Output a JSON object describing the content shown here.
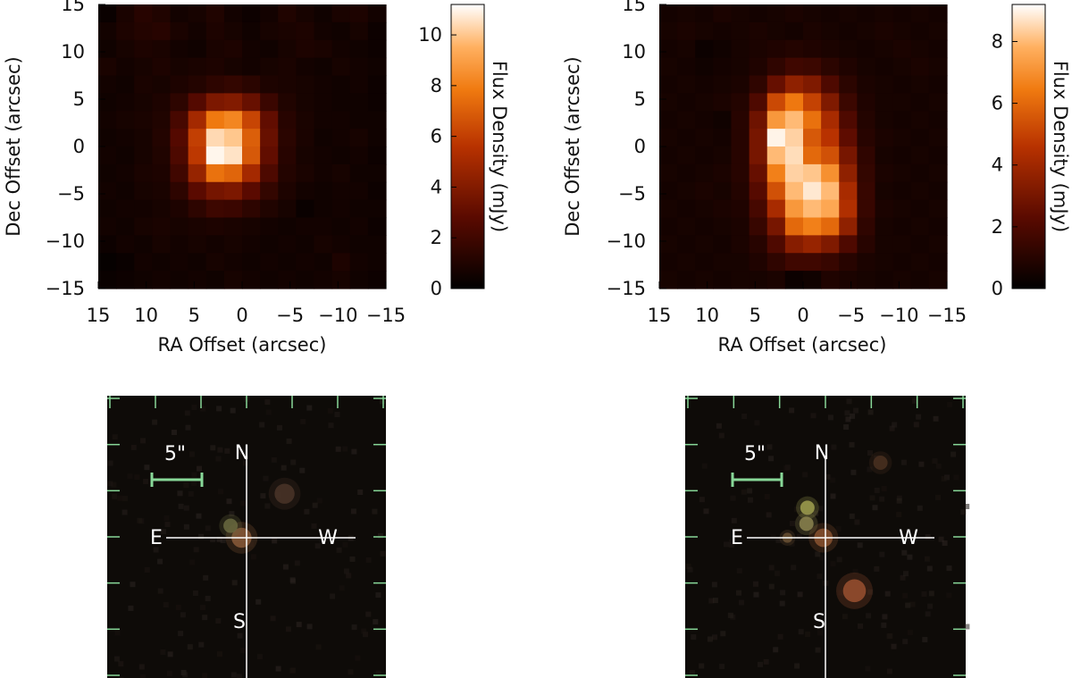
{
  "chart_data": [
    {
      "type": "heatmap",
      "id": "left",
      "x_ticks": [
        "15",
        "10",
        "5",
        "0",
        "−5",
        "−10",
        "−15"
      ],
      "y_ticks": [
        "15",
        "10",
        "5",
        "0",
        "−5",
        "−10",
        "−15"
      ],
      "xlabel": "RA Offset (arcsec)",
      "ylabel": "Dec Offset (arcsec)",
      "xlim": [
        15,
        -15
      ],
      "ylim": [
        -15,
        15
      ],
      "colorbar": {
        "label": "Flux Density (mJy)",
        "ticks": [
          "0",
          "2",
          "4",
          "6",
          "8",
          "10"
        ],
        "range": [
          0,
          11.2
        ]
      },
      "z": [
        [
          0.3,
          0.8,
          1.2,
          1.0,
          0.6,
          0.7,
          1.0,
          0.6,
          0.4,
          0.6,
          1.0,
          0.7,
          0.5,
          0.8,
          0.9,
          0.6
        ],
        [
          0.6,
          0.9,
          1.1,
          1.2,
          0.8,
          0.6,
          0.9,
          0.7,
          0.5,
          0.7,
          0.8,
          0.9,
          0.6,
          0.5,
          0.7,
          0.4
        ],
        [
          0.5,
          0.7,
          0.9,
          0.8,
          0.6,
          0.5,
          0.8,
          0.9,
          0.6,
          0.5,
          0.7,
          0.9,
          0.8,
          0.6,
          0.5,
          0.4
        ],
        [
          0.8,
          0.6,
          0.7,
          0.9,
          0.7,
          0.8,
          0.9,
          0.7,
          0.6,
          0.7,
          0.8,
          0.6,
          0.5,
          0.7,
          0.6,
          0.5
        ],
        [
          0.6,
          0.5,
          0.8,
          0.7,
          0.9,
          1.1,
          1.4,
          1.6,
          1.3,
          0.9,
          0.8,
          0.7,
          0.6,
          0.5,
          0.6,
          0.4
        ],
        [
          0.5,
          0.6,
          0.7,
          0.9,
          1.4,
          2.6,
          3.8,
          4.0,
          3.2,
          1.8,
          1.0,
          0.7,
          0.6,
          0.5,
          0.5,
          0.4
        ],
        [
          0.6,
          0.7,
          0.8,
          1.0,
          2.2,
          5.0,
          7.8,
          8.2,
          6.2,
          3.0,
          1.2,
          0.8,
          0.6,
          0.6,
          0.5,
          0.5
        ],
        [
          0.5,
          0.6,
          0.7,
          1.1,
          2.6,
          6.0,
          10.4,
          10.0,
          7.0,
          3.2,
          1.3,
          0.8,
          0.5,
          0.6,
          0.7,
          0.5
        ],
        [
          0.6,
          0.5,
          0.7,
          1.0,
          2.4,
          5.8,
          11.0,
          10.6,
          6.8,
          3.0,
          1.2,
          0.7,
          0.6,
          0.5,
          0.6,
          0.4
        ],
        [
          0.5,
          0.6,
          0.8,
          0.9,
          2.0,
          4.6,
          7.6,
          7.2,
          5.0,
          2.4,
          1.1,
          0.8,
          0.6,
          0.7,
          0.5,
          0.5
        ],
        [
          0.6,
          0.5,
          0.7,
          0.8,
          1.4,
          2.8,
          3.6,
          3.8,
          2.8,
          1.6,
          0.9,
          0.6,
          0.5,
          0.6,
          0.6,
          0.4
        ],
        [
          0.5,
          0.6,
          0.6,
          0.7,
          0.9,
          1.4,
          1.9,
          1.8,
          1.4,
          1.0,
          0.7,
          0.3,
          0.5,
          0.6,
          0.5,
          0.5
        ],
        [
          0.6,
          0.5,
          0.7,
          0.8,
          0.7,
          0.8,
          0.9,
          0.8,
          0.7,
          0.6,
          0.5,
          0.6,
          0.6,
          0.5,
          0.6,
          0.4
        ],
        [
          0.4,
          0.6,
          0.5,
          0.7,
          0.6,
          0.7,
          0.6,
          0.7,
          0.6,
          0.5,
          0.6,
          0.5,
          0.7,
          0.6,
          0.5,
          0.5
        ],
        [
          0.2,
          0.3,
          0.6,
          0.5,
          0.6,
          0.5,
          0.7,
          0.6,
          0.5,
          0.6,
          0.5,
          0.6,
          0.5,
          0.9,
          0.6,
          0.5
        ],
        [
          0.3,
          0.4,
          0.5,
          0.6,
          0.5,
          0.6,
          0.5,
          0.7,
          0.6,
          0.5,
          0.6,
          0.5,
          0.6,
          0.7,
          0.5,
          0.4
        ]
      ]
    },
    {
      "type": "heatmap",
      "id": "right",
      "x_ticks": [
        "15",
        "10",
        "5",
        "0",
        "−5",
        "−10",
        "−15"
      ],
      "y_ticks": [
        "15",
        "10",
        "5",
        "0",
        "−5",
        "−10",
        "−15"
      ],
      "xlabel": "RA Offset (arcsec)",
      "ylabel": "Dec Offset (arcsec)",
      "xlim": [
        15,
        -15
      ],
      "ylim": [
        -15,
        15
      ],
      "colorbar": {
        "label": "Flux Density (mJy)",
        "ticks": [
          "0",
          "2",
          "4",
          "6",
          "8"
        ],
        "range": [
          0,
          9.2
        ]
      },
      "z": [
        [
          0.5,
          0.6,
          0.5,
          0.7,
          0.6,
          0.5,
          0.6,
          0.7,
          0.6,
          0.5,
          0.6,
          0.5,
          0.6,
          0.5,
          0.6,
          0.5
        ],
        [
          0.6,
          0.7,
          0.6,
          0.5,
          0.6,
          0.7,
          0.6,
          0.5,
          0.7,
          0.6,
          0.5,
          0.6,
          0.7,
          0.6,
          0.5,
          0.6
        ],
        [
          0.5,
          0.6,
          0.3,
          0.4,
          0.6,
          0.7,
          0.8,
          0.9,
          0.8,
          0.7,
          0.6,
          0.5,
          0.6,
          0.7,
          0.6,
          0.5
        ],
        [
          0.6,
          0.5,
          0.4,
          0.5,
          0.6,
          0.8,
          1.2,
          1.6,
          1.5,
          1.1,
          0.8,
          0.6,
          0.5,
          0.6,
          0.7,
          0.6
        ],
        [
          0.5,
          0.6,
          0.5,
          0.6,
          0.7,
          1.2,
          2.6,
          3.6,
          3.2,
          2.0,
          1.1,
          0.7,
          0.6,
          0.5,
          0.6,
          0.5
        ],
        [
          0.6,
          0.5,
          0.6,
          0.7,
          0.9,
          2.0,
          5.2,
          6.4,
          5.0,
          3.2,
          1.5,
          0.8,
          0.6,
          0.6,
          0.5,
          0.6
        ],
        [
          0.5,
          0.6,
          0.5,
          0.4,
          1.0,
          2.8,
          7.2,
          8.0,
          6.2,
          4.2,
          2.0,
          0.9,
          0.6,
          0.5,
          0.6,
          0.5
        ],
        [
          0.6,
          0.5,
          0.6,
          0.5,
          1.0,
          3.0,
          9.0,
          8.4,
          5.6,
          4.6,
          2.4,
          1.0,
          0.7,
          0.6,
          0.5,
          0.6
        ],
        [
          0.5,
          0.6,
          0.5,
          0.6,
          1.0,
          3.0,
          8.0,
          8.6,
          6.0,
          5.4,
          3.0,
          1.2,
          0.6,
          0.5,
          0.6,
          0.5
        ],
        [
          0.6,
          0.5,
          0.6,
          0.7,
          1.0,
          2.6,
          6.6,
          8.4,
          8.2,
          7.0,
          3.6,
          1.3,
          0.7,
          0.6,
          0.5,
          0.6
        ],
        [
          0.5,
          0.6,
          0.7,
          0.6,
          0.9,
          2.2,
          5.4,
          8.0,
          8.8,
          8.0,
          4.2,
          1.4,
          0.6,
          0.5,
          0.6,
          0.5
        ],
        [
          0.6,
          0.5,
          0.6,
          0.7,
          0.8,
          1.8,
          4.2,
          7.2,
          8.0,
          7.6,
          4.4,
          1.4,
          0.7,
          0.6,
          0.5,
          0.6
        ],
        [
          0.5,
          0.6,
          0.5,
          0.6,
          0.7,
          1.4,
          3.0,
          6.0,
          6.6,
          6.0,
          3.6,
          1.2,
          0.6,
          0.5,
          0.6,
          0.5
        ],
        [
          0.6,
          0.5,
          0.6,
          0.5,
          0.7,
          1.0,
          2.0,
          3.4,
          3.8,
          3.2,
          2.0,
          1.0,
          0.6,
          0.6,
          0.5,
          0.6
        ],
        [
          0.5,
          0.6,
          0.5,
          0.6,
          0.6,
          0.8,
          1.2,
          1.6,
          1.6,
          1.4,
          1.0,
          0.7,
          0.6,
          0.5,
          0.6,
          0.5
        ],
        [
          0.6,
          0.5,
          0.6,
          0.5,
          0.6,
          0.6,
          0.7,
          0.3,
          0.4,
          0.8,
          0.7,
          0.6,
          0.5,
          0.6,
          0.5,
          0.6
        ]
      ]
    }
  ],
  "cutouts": [
    {
      "id": "left",
      "scale_label": "5\"",
      "compass": {
        "n": "N",
        "e": "E",
        "w": "W",
        "s": "S"
      },
      "sources": [
        {
          "offset_e": 0.5,
          "offset_n": 0.0,
          "color": "#8a5a38",
          "size": 1.4
        },
        {
          "offset_e": 1.6,
          "offset_n": 1.2,
          "color": "#6a6a40",
          "size": 1.0
        },
        {
          "offset_e": -3.8,
          "offset_n": 4.4,
          "color": "#4a3428",
          "size": 1.4
        }
      ]
    },
    {
      "id": "right",
      "scale_label": "5\"",
      "compass": {
        "n": "N",
        "e": "E",
        "w": "W",
        "s": "S"
      },
      "sources": [
        {
          "offset_e": 0.2,
          "offset_n": 0.0,
          "color": "#8a5230",
          "size": 1.3
        },
        {
          "offset_e": 1.8,
          "offset_n": 3.0,
          "color": "#a0a050",
          "size": 1.0
        },
        {
          "offset_e": 1.9,
          "offset_n": 1.4,
          "color": "#8c8450",
          "size": 1.0
        },
        {
          "offset_e": 3.8,
          "offset_n": 0.0,
          "color": "#6a5032",
          "size": 0.7
        },
        {
          "offset_e": -2.9,
          "offset_n": -5.3,
          "color": "#9a5030",
          "size": 1.6
        },
        {
          "offset_e": -5.5,
          "offset_n": 7.5,
          "color": "#4a3020",
          "size": 1.0
        }
      ]
    }
  ]
}
